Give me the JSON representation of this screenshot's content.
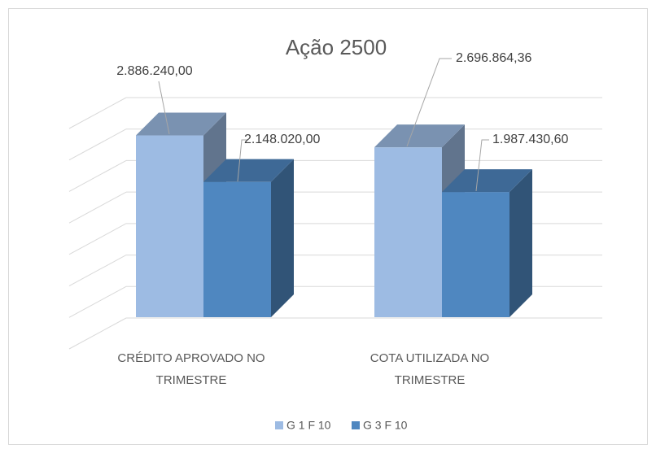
{
  "chart_data": {
    "type": "bar3d",
    "title": "Ação 2500",
    "categories": [
      "CRÉDITO APROVADO NO TRIMESTRE",
      "COTA UTILIZADA NO TRIMESTRE"
    ],
    "series": [
      {
        "name": "G 1 F 10",
        "color": "#9dbbe3",
        "values": [
          2886240,
          2696864.36
        ],
        "value_labels": [
          "2.886.240,00",
          "2.696.864,36"
        ]
      },
      {
        "name": "G 3 F 10",
        "color": "#4f87c0",
        "values": [
          2148020,
          1987430.6
        ],
        "value_labels": [
          "2.148.020,00",
          "1.987.430,60"
        ]
      }
    ],
    "ylim": [
      0,
      3500000
    ],
    "yticks": [
      0,
      500000,
      1000000,
      1500000,
      2000000,
      2500000,
      3000000,
      3500000
    ],
    "grid": true,
    "legend": "bottom"
  }
}
